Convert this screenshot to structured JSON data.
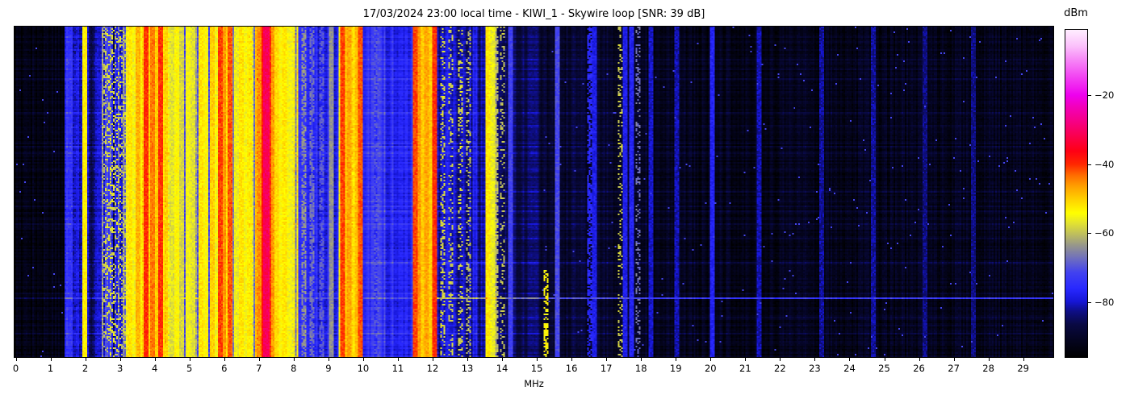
{
  "chart_data": {
    "type": "heatmap",
    "subtype": "rf-spectrogram-waterfall",
    "title": "17/03/2024 23:00 local time - KIWI_1 - Skywire loop [SNR: 39 dB]",
    "xlabel": "MHz",
    "x_ticks": [
      "0",
      "1",
      "2",
      "3",
      "4",
      "5",
      "6",
      "7",
      "8",
      "9",
      "10",
      "11",
      "12",
      "13",
      "14",
      "15",
      "16",
      "17",
      "18",
      "19",
      "20",
      "21",
      "22",
      "23",
      "24",
      "25",
      "26",
      "27",
      "28",
      "29"
    ],
    "x_range_mhz": [
      0,
      29.9
    ],
    "y_ticks": [],
    "grid": false,
    "colorbar": {
      "label": "dBm",
      "ticks": [
        {
          "label": "−20",
          "v": -20
        },
        {
          "label": "−40",
          "v": -40
        },
        {
          "label": "−60",
          "v": -60
        },
        {
          "label": "−80",
          "v": -80
        }
      ],
      "clim": [
        -96,
        -1
      ],
      "stops": [
        [
          0.0,
          "#000000"
        ],
        [
          0.05,
          "#04041e"
        ],
        [
          0.1,
          "#090943"
        ],
        [
          0.14,
          "#0e0e85"
        ],
        [
          0.17,
          "#1616d6"
        ],
        [
          0.21,
          "#2828ff"
        ],
        [
          0.26,
          "#4343ee"
        ],
        [
          0.3,
          "#6d6dc0"
        ],
        [
          0.34,
          "#95958d"
        ],
        [
          0.375,
          "#bdbd5e"
        ],
        [
          0.41,
          "#e3e330"
        ],
        [
          0.44,
          "#ffff00"
        ],
        [
          0.48,
          "#ffd300"
        ],
        [
          0.52,
          "#ffa200"
        ],
        [
          0.555,
          "#ff6d00"
        ],
        [
          0.59,
          "#ff2600"
        ],
        [
          0.63,
          "#ff0015"
        ],
        [
          0.675,
          "#fa004d"
        ],
        [
          0.72,
          "#f60085"
        ],
        [
          0.765,
          "#f200bb"
        ],
        [
          0.8,
          "#ee00ee"
        ],
        [
          0.85,
          "#f23cf2"
        ],
        [
          0.9,
          "#f67cf6"
        ],
        [
          0.95,
          "#fbc0fb"
        ],
        [
          1.0,
          "#ffeeff"
        ]
      ]
    },
    "band_profile_dbm": [
      {
        "f0": 0.0,
        "f1": 1.45,
        "lvl": -93,
        "v": 2.5
      },
      {
        "f0": 1.45,
        "f1": 2.1,
        "lvl": -77,
        "v": 5
      },
      {
        "f0": 2.1,
        "f1": 2.5,
        "lvl": -84,
        "v": 5
      },
      {
        "f0": 2.5,
        "f1": 3.2,
        "lvl": -72,
        "v": 8
      },
      {
        "f0": 3.2,
        "f1": 3.65,
        "lvl": -62,
        "v": 8
      },
      {
        "f0": 3.65,
        "f1": 4.45,
        "lvl": -59,
        "v": 8.5
      },
      {
        "f0": 4.45,
        "f1": 5.3,
        "lvl": -67,
        "v": 8
      },
      {
        "f0": 5.3,
        "f1": 5.85,
        "lvl": -62,
        "v": 8
      },
      {
        "f0": 5.85,
        "f1": 6.3,
        "lvl": -55,
        "v": 7
      },
      {
        "f0": 6.3,
        "f1": 6.9,
        "lvl": -62,
        "v": 8
      },
      {
        "f0": 6.9,
        "f1": 7.45,
        "lvl": -52,
        "v": 7
      },
      {
        "f0": 7.45,
        "f1": 8.15,
        "lvl": -59,
        "v": 8
      },
      {
        "f0": 8.15,
        "f1": 9.35,
        "lvl": -77,
        "v": 4.5
      },
      {
        "f0": 9.35,
        "f1": 9.95,
        "lvl": -56,
        "v": 6
      },
      {
        "f0": 9.95,
        "f1": 10.7,
        "lvl": -74,
        "v": 3.5
      },
      {
        "f0": 10.7,
        "f1": 11.45,
        "lvl": -76,
        "v": 3.5
      },
      {
        "f0": 11.45,
        "f1": 12.1,
        "lvl": -55,
        "v": 6
      },
      {
        "f0": 12.1,
        "f1": 13.35,
        "lvl": -81,
        "v": 5
      },
      {
        "f0": 13.35,
        "f1": 13.55,
        "lvl": -83,
        "v": 3
      },
      {
        "f0": 13.55,
        "f1": 13.9,
        "lvl": -68,
        "v": 7
      },
      {
        "f0": 13.9,
        "f1": 15.15,
        "lvl": -86,
        "v": 3
      },
      {
        "f0": 15.15,
        "f1": 16.4,
        "lvl": -89,
        "v": 3
      },
      {
        "f0": 16.4,
        "f1": 18.2,
        "lvl": -90,
        "v": 2.8
      },
      {
        "f0": 18.2,
        "f1": 29.95,
        "lvl": -92,
        "v": 2.6
      }
    ],
    "carriers": [
      {
        "f": 1.98,
        "l": -53
      },
      {
        "f": 2.55,
        "l": -60,
        "m": "o"
      },
      {
        "f": 2.63,
        "l": -58,
        "m": "o"
      },
      {
        "f": 2.72,
        "l": -61,
        "m": "o"
      },
      {
        "f": 2.8,
        "l": -57,
        "m": "o"
      },
      {
        "f": 2.88,
        "l": -60,
        "m": "o"
      },
      {
        "f": 2.97,
        "l": -58,
        "m": "o"
      },
      {
        "f": 3.06,
        "l": -62,
        "m": "o"
      },
      {
        "f": 3.14,
        "l": -59,
        "m": "o"
      },
      {
        "f": 3.3,
        "l": -52
      },
      {
        "f": 3.42,
        "l": -55
      },
      {
        "f": 3.55,
        "l": -48
      },
      {
        "f": 3.64,
        "l": -53
      },
      {
        "f": 3.75,
        "l": -40
      },
      {
        "f": 3.85,
        "l": -50
      },
      {
        "f": 3.95,
        "l": -44
      },
      {
        "f": 4.08,
        "l": -50
      },
      {
        "f": 4.2,
        "l": -40
      },
      {
        "f": 4.33,
        "l": -51
      },
      {
        "f": 4.5,
        "l": -57
      },
      {
        "f": 4.65,
        "l": -54
      },
      {
        "f": 4.8,
        "l": -58
      },
      {
        "f": 4.95,
        "l": -55
      },
      {
        "f": 5.1,
        "l": -57
      },
      {
        "f": 5.35,
        "l": -52
      },
      {
        "f": 5.5,
        "l": -54
      },
      {
        "f": 5.65,
        "l": -50
      },
      {
        "f": 5.78,
        "l": -55
      },
      {
        "f": 5.9,
        "l": -41
      },
      {
        "f": 6.0,
        "l": -46
      },
      {
        "f": 6.07,
        "l": -51
      },
      {
        "f": 6.18,
        "l": -42
      },
      {
        "f": 6.35,
        "l": -56
      },
      {
        "f": 6.5,
        "l": -52
      },
      {
        "f": 6.62,
        "l": -55
      },
      {
        "f": 6.75,
        "l": -53
      },
      {
        "f": 6.95,
        "l": -48
      },
      {
        "f": 7.05,
        "l": -45
      },
      {
        "f": 7.15,
        "l": -38
      },
      {
        "f": 7.22,
        "l": -31,
        "w": 0.055
      },
      {
        "f": 7.3,
        "l": -40
      },
      {
        "f": 7.38,
        "l": -46
      },
      {
        "f": 7.5,
        "l": -51
      },
      {
        "f": 7.62,
        "l": -54
      },
      {
        "f": 7.75,
        "l": -52
      },
      {
        "f": 7.88,
        "l": -55
      },
      {
        "f": 8.0,
        "l": -56
      },
      {
        "f": 8.3,
        "l": -64,
        "m": "d"
      },
      {
        "f": 8.55,
        "l": -67,
        "m": "d"
      },
      {
        "f": 8.8,
        "l": -69,
        "m": "d"
      },
      {
        "f": 9.1,
        "l": -64
      },
      {
        "f": 9.41,
        "l": -41
      },
      {
        "f": 9.52,
        "l": -50
      },
      {
        "f": 9.62,
        "l": -47
      },
      {
        "f": 9.72,
        "l": -52
      },
      {
        "f": 9.82,
        "l": -49
      },
      {
        "f": 9.92,
        "l": -42
      },
      {
        "f": 10.4,
        "l": -70,
        "m": "d"
      },
      {
        "f": 11.5,
        "l": -41
      },
      {
        "f": 11.62,
        "l": -46
      },
      {
        "f": 11.73,
        "l": -50
      },
      {
        "f": 11.85,
        "l": -47
      },
      {
        "f": 11.95,
        "l": -50
      },
      {
        "f": 12.05,
        "l": -40
      },
      {
        "f": 12.3,
        "l": -58,
        "m": "o"
      },
      {
        "f": 12.55,
        "l": -59,
        "m": "o"
      },
      {
        "f": 12.8,
        "l": -58,
        "m": "o"
      },
      {
        "f": 13.05,
        "l": -60,
        "m": "o"
      },
      {
        "f": 13.6,
        "l": -52
      },
      {
        "f": 13.73,
        "l": -56
      },
      {
        "f": 13.85,
        "l": -60,
        "m": "d"
      },
      {
        "f": 14.0,
        "l": -60,
        "m": "o"
      },
      {
        "f": 14.25,
        "l": -72
      },
      {
        "f": 15.28,
        "l": -54,
        "m": "d",
        "t0": 0.74
      },
      {
        "f": 15.6,
        "l": -71
      },
      {
        "f": 16.55,
        "l": -76,
        "m": "d"
      },
      {
        "f": 16.67,
        "l": -78
      },
      {
        "f": 17.4,
        "l": -59,
        "m": "o"
      },
      {
        "f": 17.57,
        "l": -78
      },
      {
        "f": 17.75,
        "l": -77
      },
      {
        "f": 17.9,
        "l": -67,
        "m": "o"
      },
      {
        "f": 18.3,
        "l": -80
      },
      {
        "f": 19.05,
        "l": -81
      },
      {
        "f": 20.05,
        "l": -77
      },
      {
        "f": 21.4,
        "l": -81
      },
      {
        "f": 23.2,
        "l": -82
      },
      {
        "f": 24.7,
        "l": -82
      },
      {
        "f": 26.2,
        "l": -83
      },
      {
        "f": 27.6,
        "l": -83
      }
    ],
    "hlines": [
      {
        "t": 0.175,
        "b": 3,
        "f0": 0,
        "f1": 30
      },
      {
        "t": 0.26,
        "b": 4,
        "f0": 0,
        "f1": 30
      },
      {
        "t": 0.3,
        "b": 3,
        "f0": 14,
        "f1": 30
      },
      {
        "t": 0.365,
        "b": 3,
        "f0": 0,
        "f1": 30
      },
      {
        "t": 0.5,
        "b": 3,
        "f0": 14,
        "f1": 30
      },
      {
        "t": 0.558,
        "b": 5,
        "f0": 9.9,
        "f1": 30
      },
      {
        "t": 0.64,
        "b": 4,
        "f0": 14,
        "f1": 30
      },
      {
        "t": 0.715,
        "b": 6,
        "f0": 9.9,
        "f1": 30
      },
      {
        "t": 0.825,
        "b": 18,
        "f0": 12.15,
        "f1": 30
      },
      {
        "t": 0.825,
        "b": 6,
        "f0": 0,
        "f1": 12.15
      },
      {
        "t": 0.88,
        "b": 3,
        "f0": 14,
        "f1": 30
      },
      {
        "t": 0.93,
        "b": 3,
        "f0": 0,
        "f1": 30
      }
    ]
  }
}
